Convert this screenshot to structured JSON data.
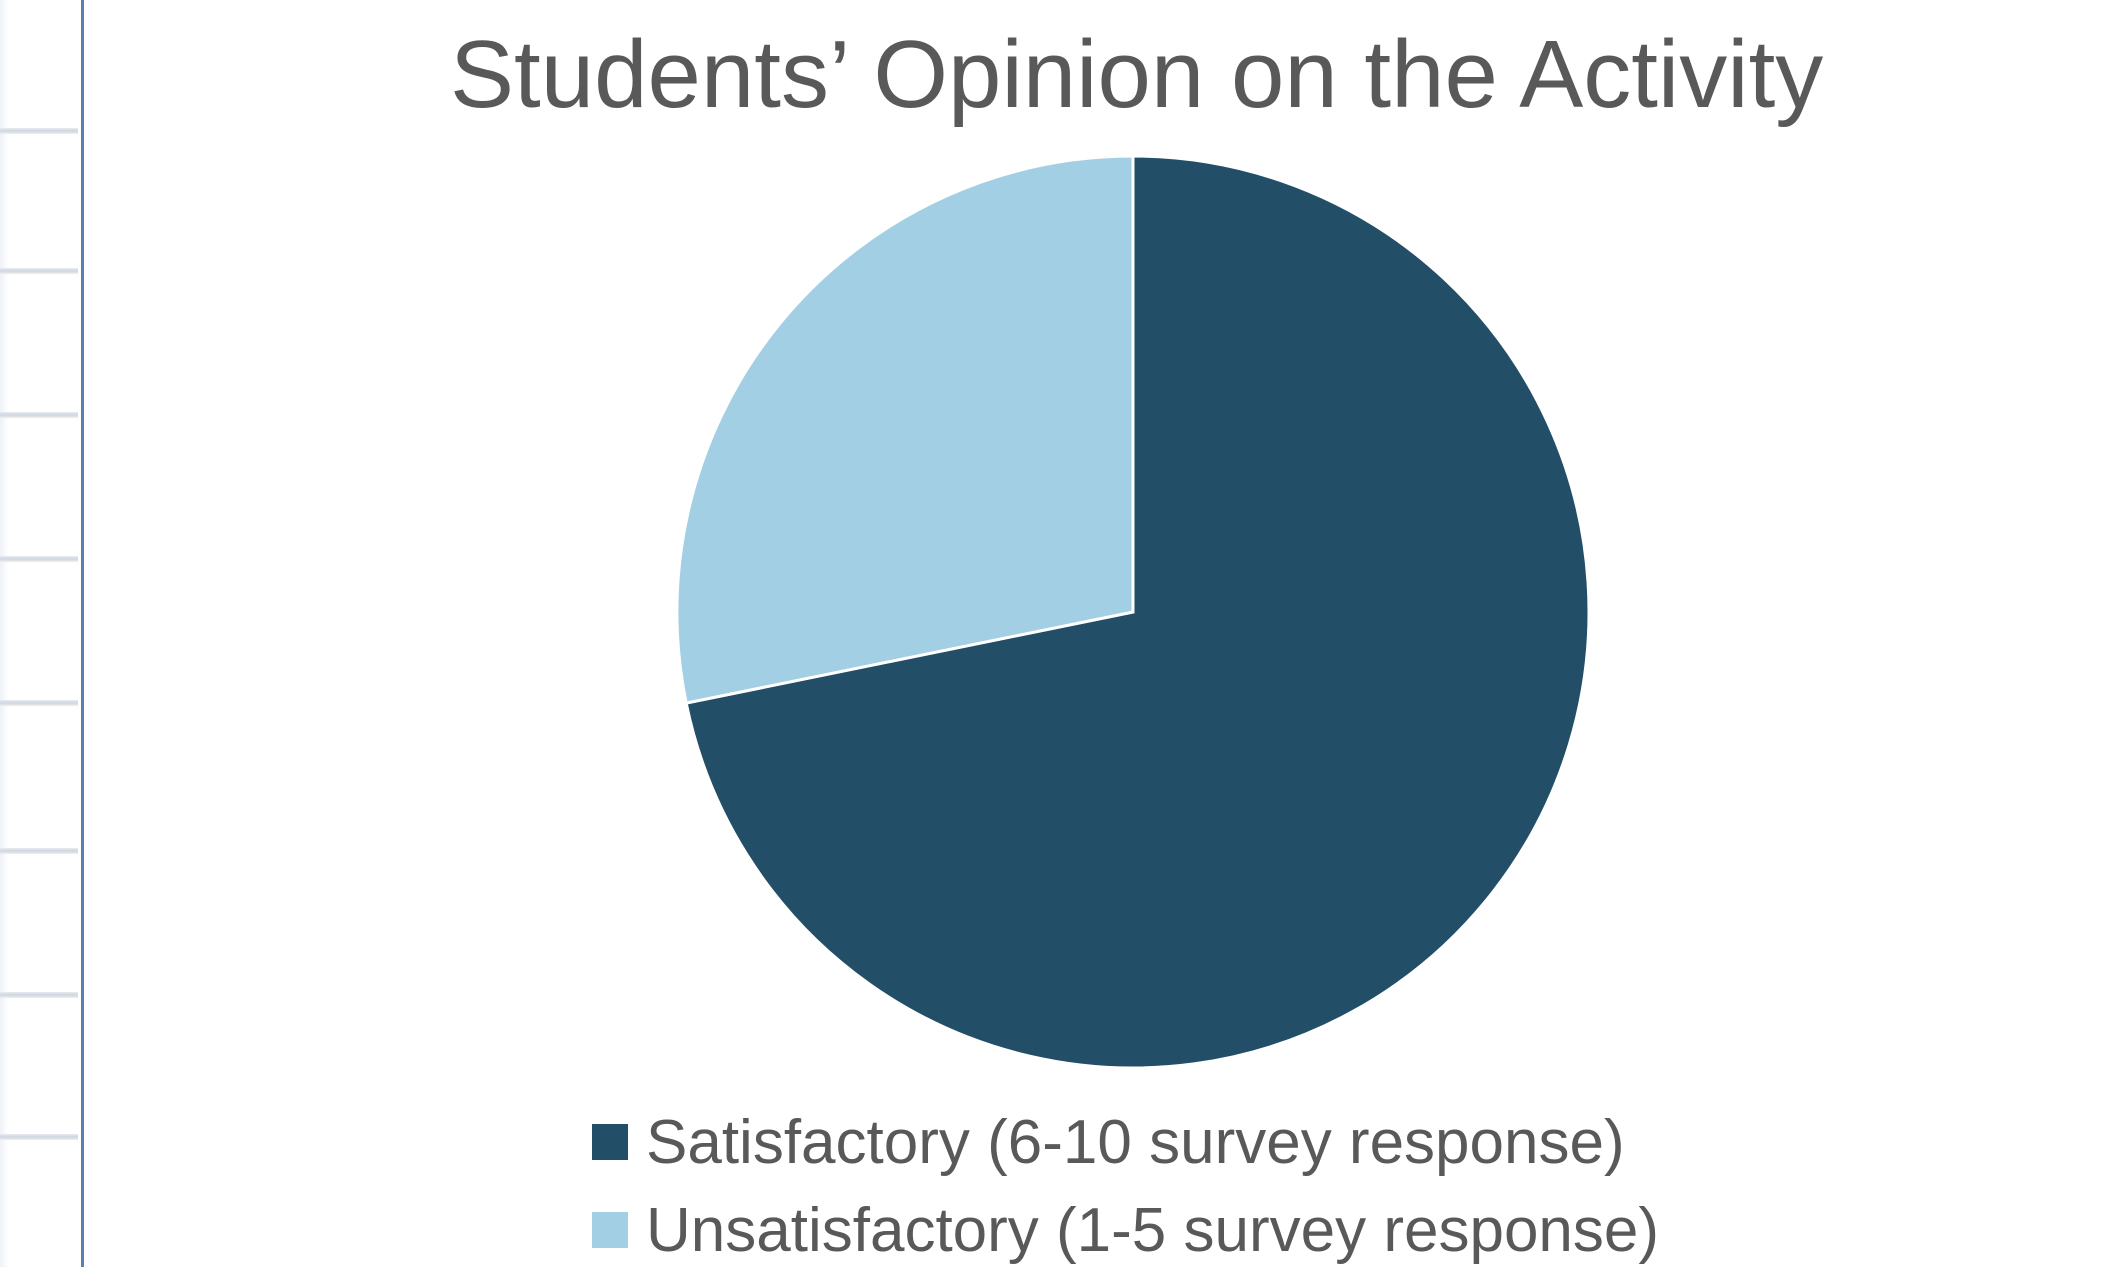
{
  "chart_data": {
    "type": "pie",
    "title": "Students’ Opinion on the Activity",
    "categories": [
      "Satisfactory (6-10 survey response)",
      "Unsatisfactory (1-5 survey response)"
    ],
    "values": [
      71.8,
      28.2
    ],
    "colors": [
      "#224e67",
      "#a3cfe5"
    ],
    "start_angle_deg": 0,
    "direction": "clockwise",
    "legend_position": "bottom"
  },
  "legend": {
    "items": [
      {
        "label": "Satisfactory (6-10 survey response)",
        "color": "#224e67"
      },
      {
        "label": "Unsatisfactory (1-5 survey response)",
        "color": "#a3cfe5"
      }
    ]
  }
}
